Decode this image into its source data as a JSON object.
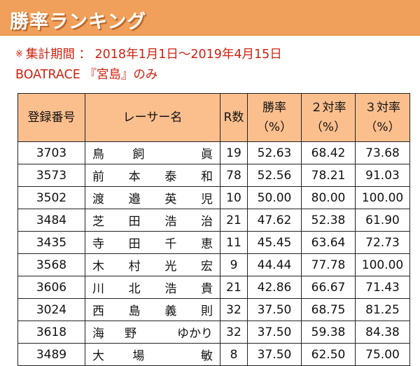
{
  "header": {
    "title": "勝率ランキング"
  },
  "notes": {
    "mark": "※",
    "period": "集計期間 ： 2018年1月1日～2019年4月15日",
    "scope": "BOATRACE 『宮島』のみ"
  },
  "table": {
    "columns": [
      "登録番号",
      "レーサー名",
      "R数",
      "勝率\n（%）",
      "２対率\n（%）",
      "３対率\n（%）"
    ],
    "rows": [
      {
        "id": "3703",
        "name": [
          "鳥",
          "飼",
          "",
          "眞"
        ],
        "races": "19",
        "win": "52.63",
        "top2": "68.42",
        "top3": "73.68"
      },
      {
        "id": "3573",
        "name": [
          "前",
          "本",
          "泰",
          "和"
        ],
        "races": "78",
        "win": "52.56",
        "top2": "78.21",
        "top3": "91.03"
      },
      {
        "id": "3502",
        "name": [
          "渡",
          "邉",
          "英",
          "児"
        ],
        "races": "10",
        "win": "50.00",
        "top2": "80.00",
        "top3": "100.00"
      },
      {
        "id": "3484",
        "name": [
          "芝",
          "田",
          "浩",
          "治"
        ],
        "races": "21",
        "win": "47.62",
        "top2": "52.38",
        "top3": "61.90"
      },
      {
        "id": "3435",
        "name": [
          "寺",
          "田",
          "千",
          "恵"
        ],
        "races": "11",
        "win": "45.45",
        "top2": "63.64",
        "top3": "72.73"
      },
      {
        "id": "3568",
        "name": [
          "木",
          "村",
          "光",
          "宏"
        ],
        "races": "9",
        "win": "44.44",
        "top2": "77.78",
        "top3": "100.00"
      },
      {
        "id": "3606",
        "name": [
          "川",
          "北",
          "浩",
          "貴"
        ],
        "races": "21",
        "win": "42.86",
        "top2": "66.67",
        "top3": "71.43"
      },
      {
        "id": "3024",
        "name": [
          "西",
          "島",
          "義",
          "則"
        ],
        "races": "32",
        "win": "37.50",
        "top2": "68.75",
        "top3": "81.25"
      },
      {
        "id": "3618",
        "name": [
          "海",
          "野",
          "",
          "ゆかり"
        ],
        "races": "32",
        "win": "37.50",
        "top2": "59.38",
        "top3": "84.38"
      },
      {
        "id": "3489",
        "name": [
          "大",
          "場",
          "",
          "敏"
        ],
        "races": "8",
        "win": "37.50",
        "top2": "62.50",
        "top3": "75.00"
      }
    ]
  },
  "colors": {
    "title_bar": "#f0a05a",
    "header_cells": "#fbbf8e",
    "note_text": "#d02010"
  }
}
